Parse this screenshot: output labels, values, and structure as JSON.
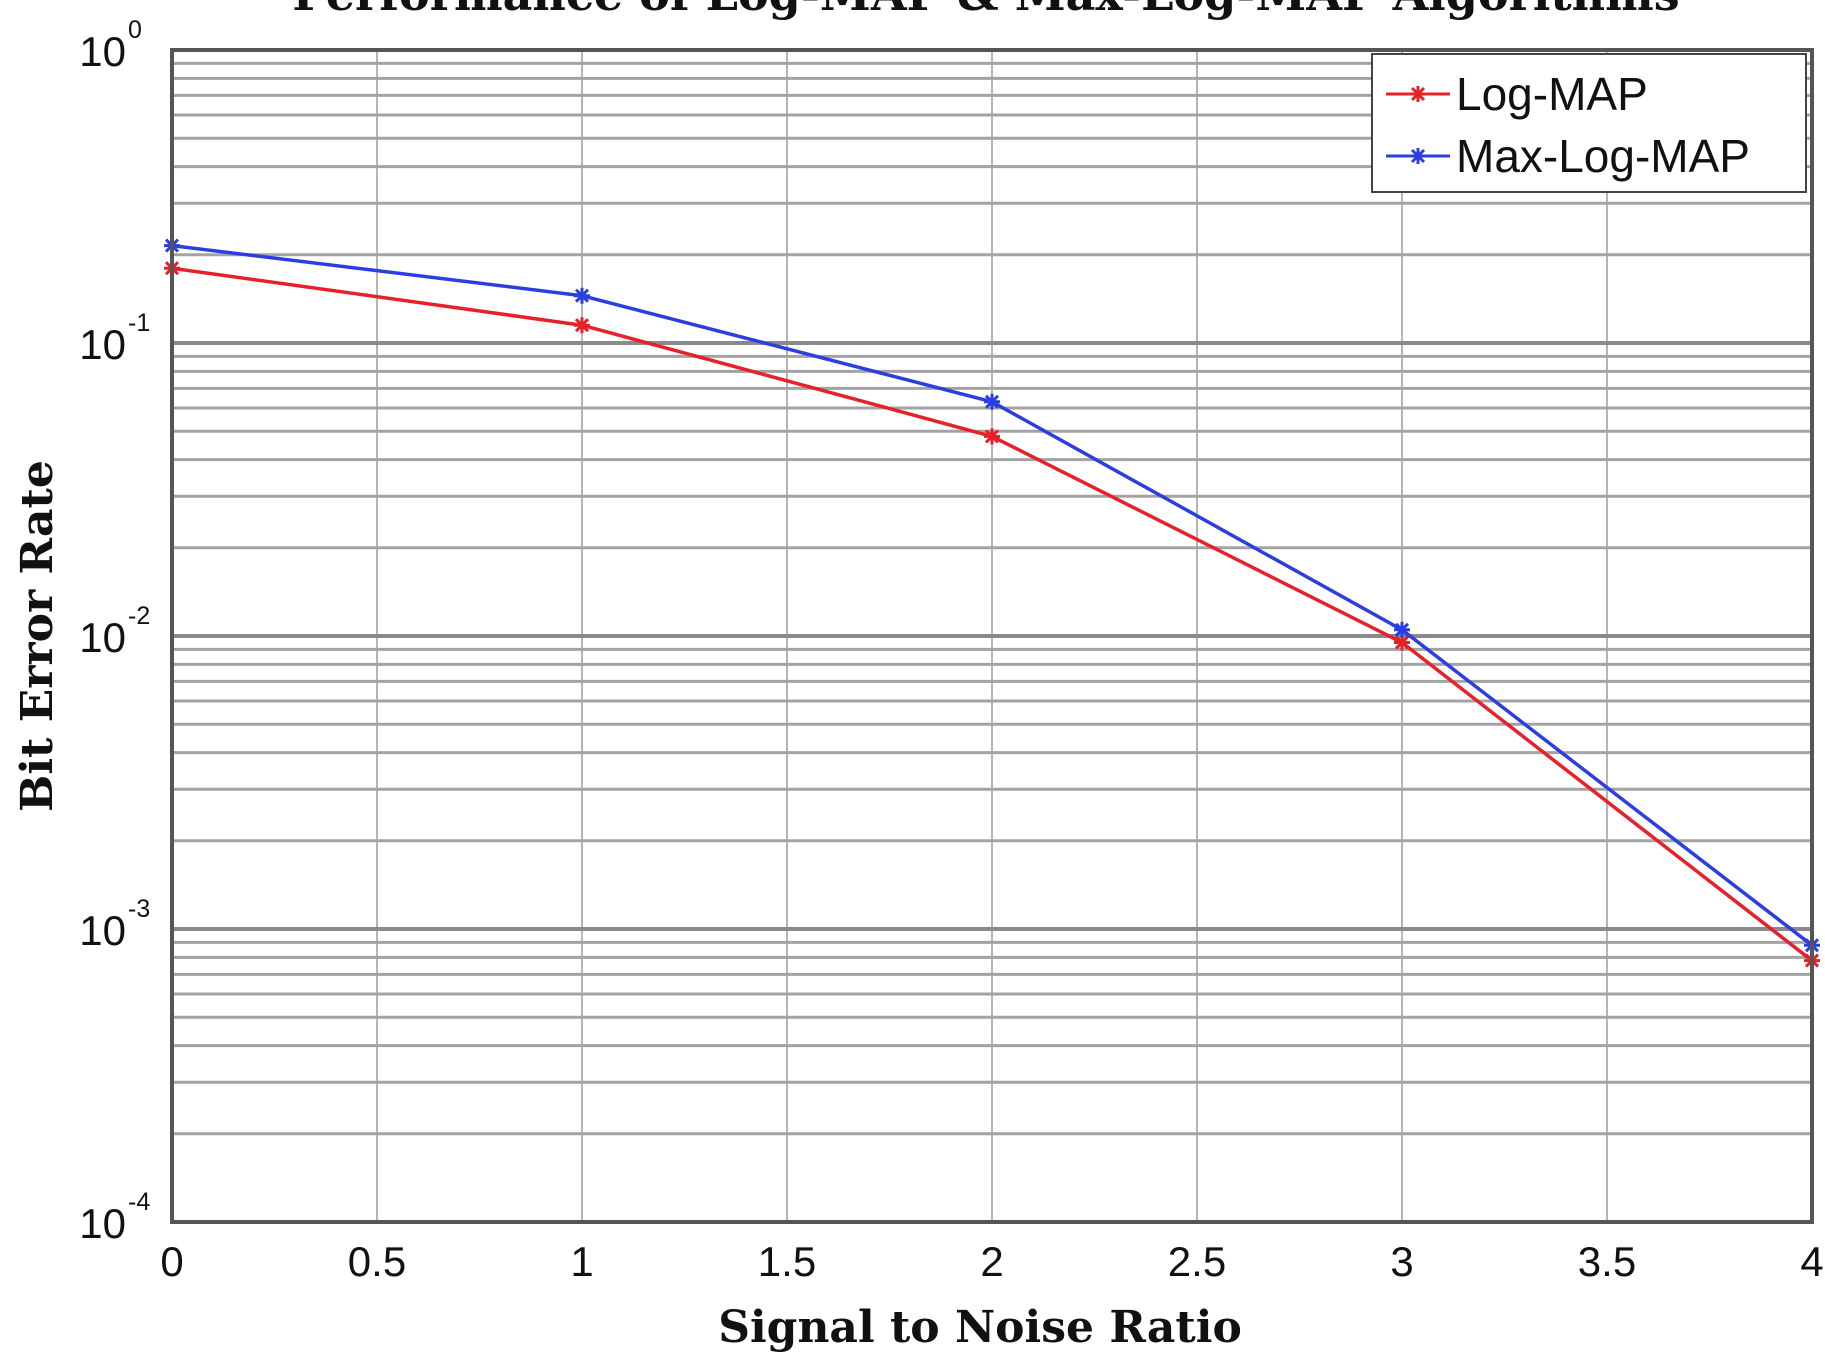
{
  "chart_data": {
    "type": "line",
    "title": "Performance of Log-MAP & Max-Log-MAP Algorithms",
    "xlabel": "Signal to Noise Ratio",
    "ylabel": "Bit Error Rate",
    "xlim": [
      0,
      4
    ],
    "ylim": [
      0.0001,
      1
    ],
    "yscale": "log",
    "grid": true,
    "legend_position": "top-right",
    "x_ticks": [
      {
        "value": 0,
        "label": "0"
      },
      {
        "value": 0.5,
        "label": "0.5"
      },
      {
        "value": 1,
        "label": "1"
      },
      {
        "value": 1.5,
        "label": "1.5"
      },
      {
        "value": 2,
        "label": "2"
      },
      {
        "value": 2.5,
        "label": "2.5"
      },
      {
        "value": 3,
        "label": "3"
      },
      {
        "value": 3.5,
        "label": "3.5"
      },
      {
        "value": 4,
        "label": "4"
      }
    ],
    "y_ticks": [
      {
        "value": 1,
        "base": "10",
        "exp": "0"
      },
      {
        "value": 0.1,
        "base": "10",
        "exp": "-1"
      },
      {
        "value": 0.01,
        "base": "10",
        "exp": "-2"
      },
      {
        "value": 0.001,
        "base": "10",
        "exp": "-3"
      },
      {
        "value": 0.0001,
        "base": "10",
        "exp": "-4"
      }
    ],
    "series": [
      {
        "name": "Log-MAP",
        "color": "#e8202a",
        "x": [
          0,
          1,
          2,
          3,
          4
        ],
        "y": [
          0.18,
          0.115,
          0.048,
          0.0095,
          0.00078
        ]
      },
      {
        "name": "Max-Log-MAP",
        "color": "#2b3fe0",
        "x": [
          0,
          1,
          2,
          3,
          4
        ],
        "y": [
          0.215,
          0.145,
          0.063,
          0.0105,
          0.00088
        ]
      }
    ]
  }
}
